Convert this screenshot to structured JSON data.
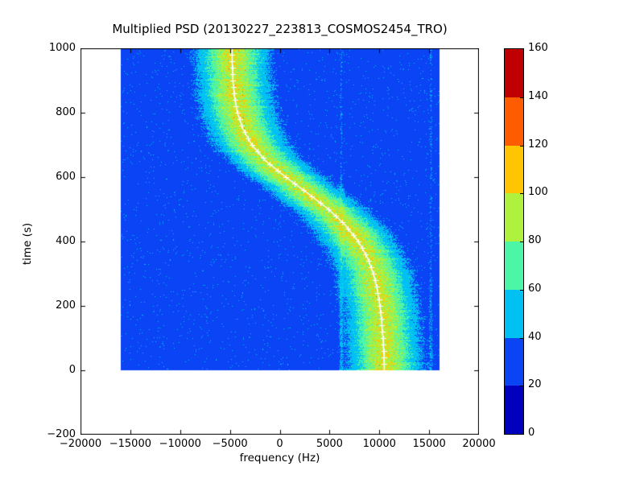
{
  "figure": {
    "background": "#ffffff"
  },
  "chart_data": {
    "type": "heatmap",
    "title": "Multiplied PSD (20130227_223813_COSMOS2454_TRO)",
    "xlabel": "frequency (Hz)",
    "ylabel": "time (s)",
    "xlim": [
      -20000,
      20000
    ],
    "ylim": [
      -200,
      1000
    ],
    "xtick_values": [
      -20000,
      -15000,
      -10000,
      -5000,
      0,
      5000,
      10000,
      15000,
      20000
    ],
    "xtick_labels": [
      "−20000",
      "−15000",
      "−10000",
      "−5000",
      "0",
      "5000",
      "10000",
      "15000",
      "20000"
    ],
    "ytick_values": [
      -200,
      0,
      200,
      400,
      600,
      800,
      1000
    ],
    "ytick_labels": [
      "−200",
      "0",
      "200",
      "400",
      "600",
      "800",
      "1000"
    ],
    "grid": false,
    "legend": null,
    "data_extent": {
      "freq_min": -16000,
      "freq_max": 16000,
      "time_min": 0,
      "time_max": 1000
    },
    "colormap": {
      "name": "jet-discrete-8",
      "levels": [
        0,
        20,
        40,
        60,
        80,
        100,
        120,
        140,
        160
      ],
      "colors": [
        "#0000bd",
        "#0a44f5",
        "#00c1f2",
        "#4df5a6",
        "#aef23e",
        "#ffc503",
        "#ff5c00",
        "#c00000"
      ]
    },
    "colorbar_tick_labels": [
      "0",
      "20",
      "40",
      "60",
      "80",
      "100",
      "120",
      "140",
      "160"
    ],
    "background_psd_level": 28,
    "peak_psd_level": 95,
    "band_sigma_hz": 2000,
    "doppler_track": {
      "color": "#ffffff",
      "marker": "+",
      "time_s": [
        0,
        50,
        100,
        150,
        200,
        250,
        300,
        350,
        400,
        450,
        500,
        550,
        600,
        650,
        700,
        750,
        800,
        850,
        900,
        950,
        1000
      ],
      "freq_hz": [
        10500,
        10450,
        10350,
        10230,
        10050,
        9800,
        9400,
        8800,
        7900,
        6600,
        4900,
        2800,
        600,
        -1400,
        -2800,
        -3700,
        -4250,
        -4550,
        -4700,
        -4770,
        -4800
      ]
    },
    "rfi_streaks_hz": [
      6100,
      15100
    ],
    "noise_seed": 42
  }
}
